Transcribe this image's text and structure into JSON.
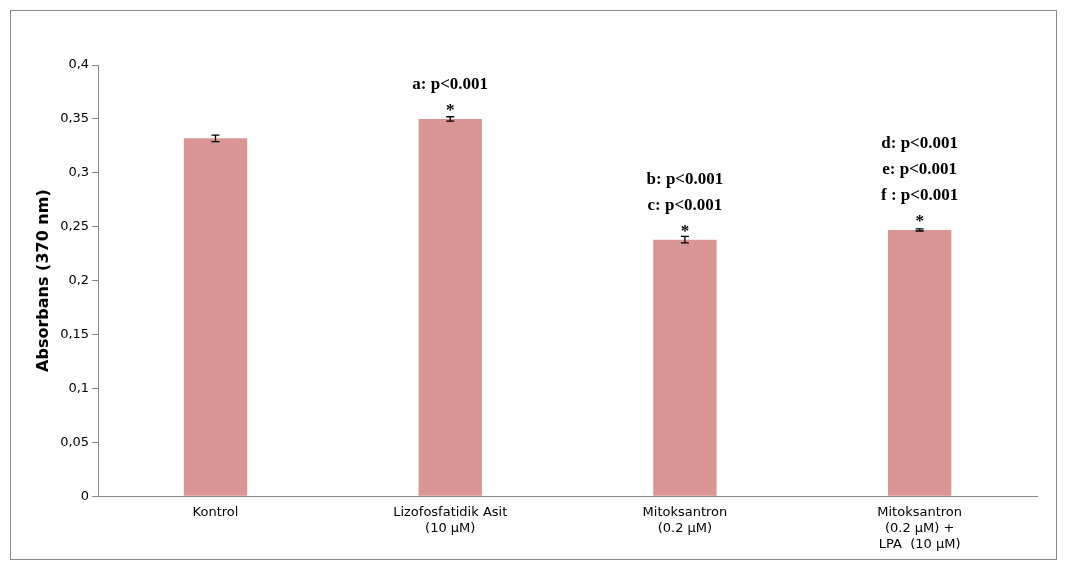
{
  "chart_data": {
    "type": "bar",
    "ylabel": "Absorbans (370 nm)",
    "categories": [
      "Kontrol",
      "Lizofosfatidik Asit\n(10 µM)",
      "Mitoksantron\n(0.2 µM)",
      "Mitoksantron\n(0.2 µM) +\nLPA  (10 µM)"
    ],
    "values": [
      0.332,
      0.35,
      0.238,
      0.247
    ],
    "errors": [
      0.003,
      0.002,
      0.003,
      0.001
    ],
    "color": "#d99694",
    "ylim": [
      0,
      0.4
    ],
    "yticks": [
      {
        "value": 0,
        "label": "0"
      },
      {
        "value": 0.05,
        "label": "0,05"
      },
      {
        "value": 0.1,
        "label": "0,1"
      },
      {
        "value": 0.15,
        "label": "0,15"
      },
      {
        "value": 0.2,
        "label": "0,2"
      },
      {
        "value": 0.25,
        "label": "0,25"
      },
      {
        "value": 0.3,
        "label": "0,3"
      },
      {
        "value": 0.35,
        "label": "0,35"
      },
      {
        "value": 0.4,
        "label": "0,4"
      }
    ],
    "grid": false,
    "legend": false,
    "annotations": [
      {
        "text": "*",
        "x": "Lizofosfatidik Asit\n(10 µM)",
        "y": 0.35
      },
      {
        "text": "a: p<0.001",
        "x": "Lizofosfatidik Asit\n(10 µM)",
        "y": 0.35
      },
      {
        "text": "*",
        "x": "Mitoksantron\n(0.2 µM)",
        "y": 0.238
      },
      {
        "text": "c: p<0.001",
        "x": "Mitoksantron\n(0.2 µM)",
        "y": 0.238
      },
      "b: p<0.001",
      {
        "text": "*",
        "x": "Mitoksantron\n(0.2 µM) +\nLPA  (10 µM)",
        "y": 0.247
      },
      {
        "text": "f : p<0.001",
        "x": "Mitoksantron\n(0.2 µM) +\nLPA  (10 µM)",
        "y": 0.247
      },
      "e: p<0.001",
      "d: p<0.001"
    ]
  }
}
